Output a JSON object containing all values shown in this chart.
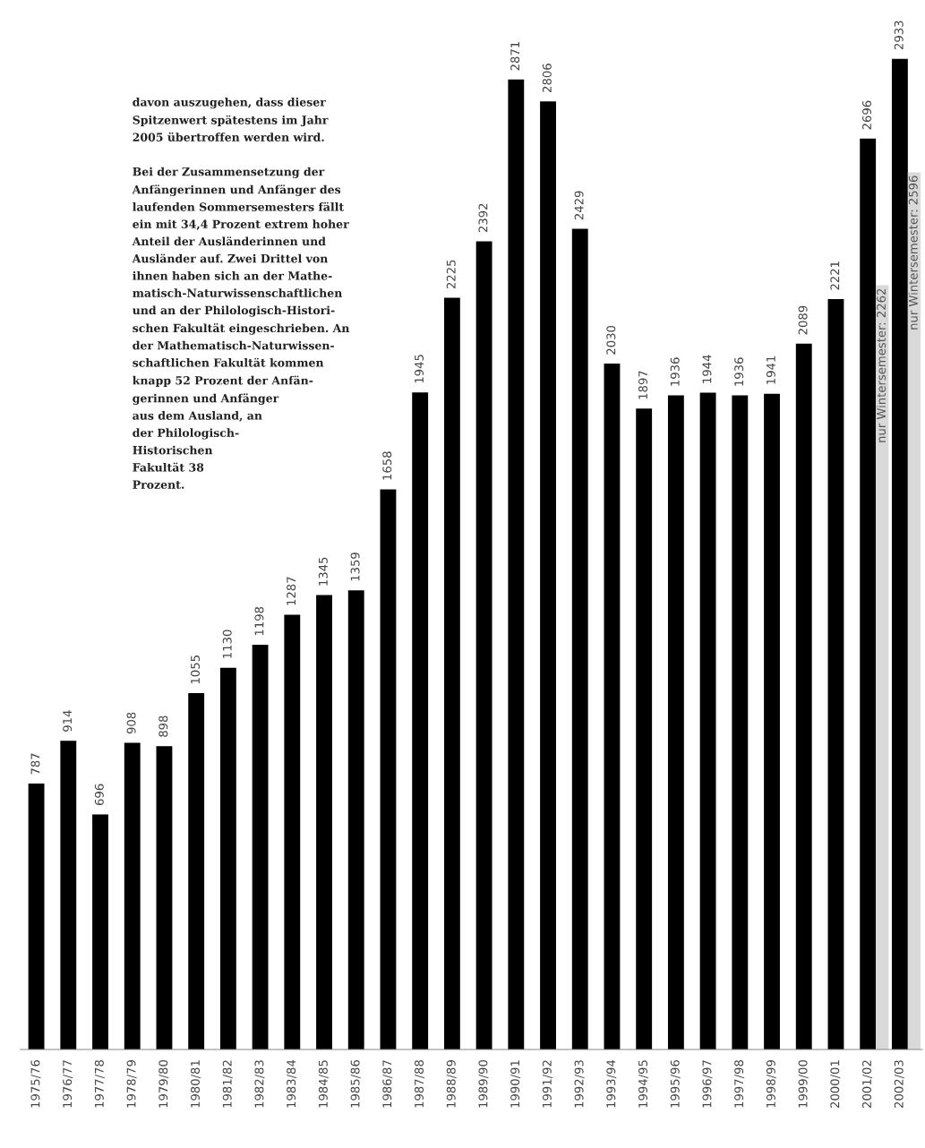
{
  "chart_data": {
    "type": "bar",
    "categories": [
      "1975/76",
      "1976/77",
      "1977/78",
      "1978/79",
      "1979/80",
      "1980/81",
      "1981/82",
      "1982/83",
      "1983/84",
      "1984/85",
      "1985/86",
      "1986/87",
      "1987/88",
      "1988/89",
      "1989/90",
      "1990/91",
      "1991/92",
      "1992/93",
      "1993/94",
      "1994/95",
      "1995/96",
      "1996/97",
      "1997/98",
      "1998/99",
      "1999/00",
      "2000/01",
      "2001/02",
      "2002/03"
    ],
    "series": [
      {
        "color": "#000000",
        "values": [
          787,
          914,
          696,
          908,
          898,
          1055,
          1130,
          1198,
          1287,
          1345,
          1359,
          1658,
          1945,
          2225,
          2392,
          2871,
          2806,
          2429,
          2030,
          1897,
          1936,
          1944,
          1936,
          1941,
          2089,
          2221,
          2696,
          2933
        ]
      },
      {
        "color": "#d9d9d9",
        "values": [
          null,
          null,
          null,
          null,
          null,
          null,
          null,
          null,
          null,
          null,
          null,
          null,
          null,
          null,
          null,
          null,
          null,
          null,
          null,
          null,
          null,
          null,
          null,
          null,
          null,
          null,
          2262,
          2596
        ],
        "value_labels": [
          null,
          null,
          null,
          null,
          null,
          null,
          null,
          null,
          null,
          null,
          null,
          null,
          null,
          null,
          null,
          null,
          null,
          null,
          null,
          null,
          null,
          null,
          null,
          null,
          null,
          null,
          "nur Wintersemester: 2262",
          "nur Wintersemester: 2596"
        ]
      }
    ],
    "data_labels": true,
    "annotations": [
      "davon auszugehen, dass dieser\nSpitzenwert spätestens im Jahr\n2005 übertroffen werden wird.\n\nBei der Zusammensetzung der\nAnfängerinnen und Anfänger des\nlaufenden Sommersemesters fällt\nein mit 34,4 Prozent extrem hoher\nAnteil der Ausländerinnen und\nAusländer auf. Zwei Drittel von\nihnen haben sich an der Mathe-\nmatisch-Naturwissenschaftlichen\nund an der Philologisch-Histori-\nschen Fakultät eingeschrieben. An\nder Mathematisch-Naturwissen-\nschaftlichen Fakultät kommen\nknapp 52 Prozent der Anfän-\ngerinnen und Anfänger\naus dem Ausland, an\nder Philologisch-\nHistorischen\nFakultät 38\nProzent."
    ]
  }
}
